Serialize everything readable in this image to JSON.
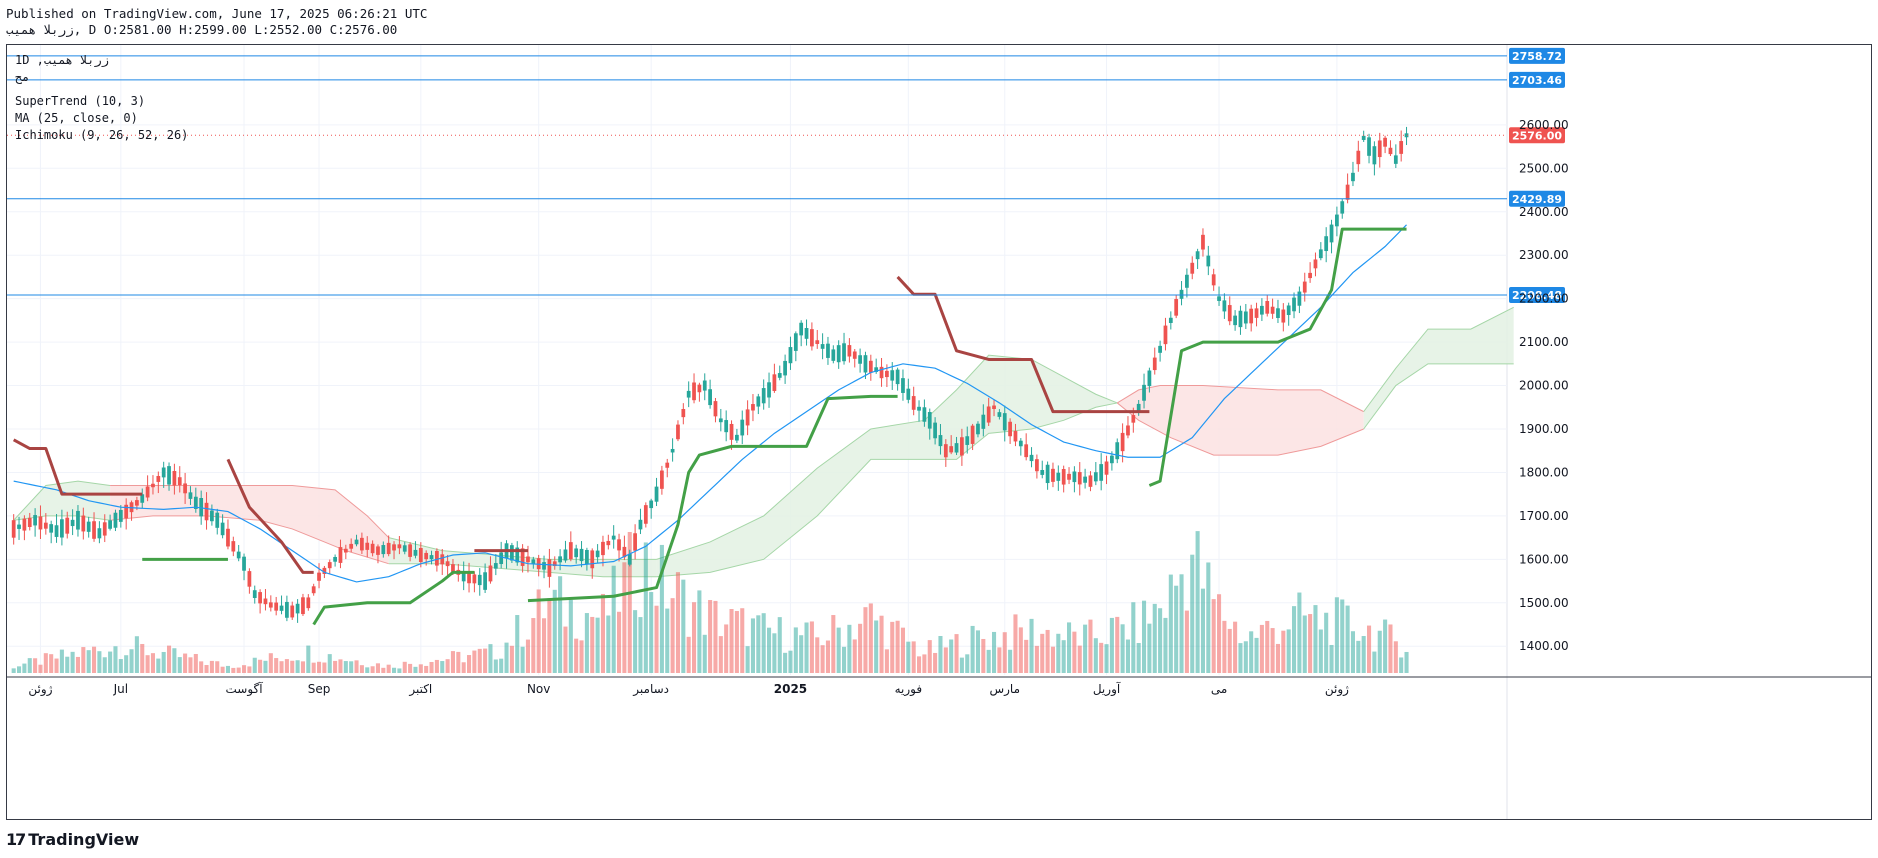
{
  "header": {
    "published": "Published on TradingView.com, June 17, 2025 06:26:21 UTC",
    "ohlc": "زربلا همیب, D O:2581.00 H:2599.00 L:2552.00 C:2576.00"
  },
  "legend": {
    "symbol": "1D ,زربلا همیب",
    "symbol_sub": "مح",
    "supertrend": "SuperTrend (10, 3)",
    "ma": "MA (25, close, 0)",
    "ichimoku": "Ichimoku (9, 26, 52, 26)"
  },
  "footer": {
    "brand": "TradingView"
  },
  "colors": {
    "up": "#26a69a",
    "down": "#ef5350",
    "st_up": "#43a047",
    "st_down": "#a94442",
    "ma": "#2196f3",
    "hline": "#1e88e5",
    "cloud_green": "#e3f1e3",
    "cloud_red": "#fbe2e2"
  },
  "chart_data": {
    "type": "candlestick",
    "ylim": [
      1320,
      2770
    ],
    "y_ticks": [
      "1400.00",
      "1500.00",
      "1600.00",
      "1700.00",
      "1800.00",
      "1900.00",
      "2000.00",
      "2100.00",
      "2200.00",
      "2300.00",
      "2400.00",
      "2500.00",
      "2600.00"
    ],
    "x_ticks": [
      {
        "label": "ژوئن",
        "bar": 5
      },
      {
        "label": "Jul",
        "bar": 20
      },
      {
        "label": "آگوست",
        "bar": 43
      },
      {
        "label": "Sep",
        "bar": 57
      },
      {
        "label": "اکتبر",
        "bar": 76
      },
      {
        "label": "Nov",
        "bar": 98
      },
      {
        "label": "دسامبر",
        "bar": 119
      },
      {
        "label": "2025",
        "bar": 145
      },
      {
        "label": "فوریه",
        "bar": 167
      },
      {
        "label": "مارس",
        "bar": 185
      },
      {
        "label": "آوریل",
        "bar": 204
      },
      {
        "label": "می",
        "bar": 225
      },
      {
        "label": "ژوئن",
        "bar": 247
      }
    ],
    "horizontal_lines": [
      {
        "value": 2758.72,
        "label": "2758.72"
      },
      {
        "value": 2703.46,
        "label": "2703.46"
      },
      {
        "value": 2429.89,
        "label": "2429.89"
      },
      {
        "value": 2208.48,
        "label": "2208.48"
      }
    ],
    "last_price": {
      "value": 2576.0,
      "label": "2576.00"
    },
    "close_path": [
      [
        0,
        1670
      ],
      [
        4,
        1690
      ],
      [
        8,
        1665
      ],
      [
        12,
        1690
      ],
      [
        16,
        1660
      ],
      [
        20,
        1700
      ],
      [
        24,
        1740
      ],
      [
        28,
        1800
      ],
      [
        31,
        1780
      ],
      [
        34,
        1730
      ],
      [
        38,
        1690
      ],
      [
        41,
        1630
      ],
      [
        43,
        1590
      ],
      [
        45,
        1520
      ],
      [
        48,
        1495
      ],
      [
        52,
        1480
      ],
      [
        55,
        1500
      ],
      [
        57,
        1560
      ],
      [
        60,
        1600
      ],
      [
        64,
        1640
      ],
      [
        68,
        1620
      ],
      [
        72,
        1630
      ],
      [
        76,
        1610
      ],
      [
        80,
        1600
      ],
      [
        84,
        1560
      ],
      [
        88,
        1550
      ],
      [
        92,
        1620
      ],
      [
        96,
        1600
      ],
      [
        100,
        1580
      ],
      [
        104,
        1620
      ],
      [
        108,
        1600
      ],
      [
        112,
        1650
      ],
      [
        115,
        1600
      ],
      [
        117,
        1680
      ],
      [
        120,
        1750
      ],
      [
        123,
        1850
      ],
      [
        126,
        1980
      ],
      [
        129,
        2000
      ],
      [
        132,
        1920
      ],
      [
        135,
        1880
      ],
      [
        138,
        1950
      ],
      [
        141,
        1990
      ],
      [
        144,
        2040
      ],
      [
        147,
        2130
      ],
      [
        150,
        2100
      ],
      [
        153,
        2070
      ],
      [
        156,
        2080
      ],
      [
        159,
        2050
      ],
      [
        162,
        2030
      ],
      [
        165,
        2020
      ],
      [
        168,
        1960
      ],
      [
        171,
        1920
      ],
      [
        174,
        1850
      ],
      [
        177,
        1860
      ],
      [
        180,
        1900
      ],
      [
        183,
        1950
      ],
      [
        186,
        1900
      ],
      [
        189,
        1850
      ],
      [
        192,
        1800
      ],
      [
        195,
        1790
      ],
      [
        198,
        1790
      ],
      [
        201,
        1780
      ],
      [
        204,
        1810
      ],
      [
        207,
        1870
      ],
      [
        210,
        1950
      ],
      [
        213,
        2050
      ],
      [
        216,
        2150
      ],
      [
        219,
        2240
      ],
      [
        222,
        2330
      ],
      [
        225,
        2200
      ],
      [
        228,
        2150
      ],
      [
        231,
        2160
      ],
      [
        234,
        2180
      ],
      [
        237,
        2160
      ],
      [
        240,
        2200
      ],
      [
        243,
        2280
      ],
      [
        246,
        2350
      ],
      [
        248,
        2410
      ],
      [
        250,
        2480
      ],
      [
        252,
        2570
      ],
      [
        254,
        2530
      ],
      [
        256,
        2560
      ],
      [
        258,
        2520
      ],
      [
        260,
        2576
      ]
    ],
    "volume_profile": [
      [
        0,
        0.05
      ],
      [
        20,
        0.2
      ],
      [
        40,
        0.05
      ],
      [
        55,
        0.15
      ],
      [
        70,
        0.05
      ],
      [
        90,
        0.15
      ],
      [
        100,
        0.5
      ],
      [
        110,
        0.4
      ],
      [
        117,
        0.8
      ],
      [
        122,
        0.6
      ],
      [
        130,
        0.4
      ],
      [
        140,
        0.3
      ],
      [
        150,
        0.25
      ],
      [
        160,
        0.4
      ],
      [
        170,
        0.15
      ],
      [
        180,
        0.25
      ],
      [
        190,
        0.3
      ],
      [
        200,
        0.25
      ],
      [
        210,
        0.35
      ],
      [
        215,
        0.5
      ],
      [
        220,
        0.85
      ],
      [
        224,
        0.5
      ],
      [
        230,
        0.25
      ],
      [
        240,
        0.4
      ],
      [
        250,
        0.35
      ],
      [
        260,
        0.2
      ]
    ],
    "ma_path": [
      [
        0,
        1780
      ],
      [
        8,
        1760
      ],
      [
        14,
        1735
      ],
      [
        20,
        1720
      ],
      [
        28,
        1715
      ],
      [
        34,
        1720
      ],
      [
        40,
        1710
      ],
      [
        46,
        1670
      ],
      [
        52,
        1620
      ],
      [
        58,
        1570
      ],
      [
        64,
        1548
      ],
      [
        70,
        1560
      ],
      [
        76,
        1590
      ],
      [
        82,
        1610
      ],
      [
        88,
        1615
      ],
      [
        96,
        1590
      ],
      [
        104,
        1585
      ],
      [
        112,
        1595
      ],
      [
        118,
        1630
      ],
      [
        124,
        1690
      ],
      [
        130,
        1760
      ],
      [
        136,
        1830
      ],
      [
        142,
        1890
      ],
      [
        148,
        1940
      ],
      [
        154,
        1990
      ],
      [
        160,
        2030
      ],
      [
        166,
        2050
      ],
      [
        172,
        2040
      ],
      [
        178,
        2005
      ],
      [
        184,
        1960
      ],
      [
        190,
        1910
      ],
      [
        196,
        1870
      ],
      [
        202,
        1850
      ],
      [
        208,
        1835
      ],
      [
        214,
        1835
      ],
      [
        220,
        1880
      ],
      [
        226,
        1970
      ],
      [
        232,
        2040
      ],
      [
        238,
        2110
      ],
      [
        244,
        2180
      ],
      [
        250,
        2260
      ],
      [
        256,
        2320
      ],
      [
        260,
        2370
      ]
    ],
    "supertrend": [
      {
        "trend": "down",
        "points": [
          [
            0,
            1875
          ],
          [
            3,
            1855
          ],
          [
            6,
            1855
          ],
          [
            9,
            1750
          ],
          [
            16,
            1750
          ],
          [
            24,
            1750
          ]
        ]
      },
      {
        "trend": "up",
        "points": [
          [
            24,
            1600
          ],
          [
            40,
            1600
          ]
        ]
      },
      {
        "trend": "down",
        "points": [
          [
            40,
            1830
          ],
          [
            44,
            1720
          ],
          [
            50,
            1640
          ],
          [
            54,
            1570
          ],
          [
            56,
            1570
          ]
        ]
      },
      {
        "trend": "up",
        "points": [
          [
            56,
            1450
          ],
          [
            58,
            1490
          ],
          [
            66,
            1500
          ],
          [
            74,
            1500
          ],
          [
            80,
            1550
          ],
          [
            82,
            1570
          ],
          [
            86,
            1570
          ]
        ]
      },
      {
        "trend": "down",
        "points": [
          [
            86,
            1620
          ],
          [
            96,
            1620
          ]
        ]
      },
      {
        "trend": "up",
        "points": [
          [
            96,
            1505
          ],
          [
            112,
            1515
          ],
          [
            120,
            1535
          ],
          [
            124,
            1680
          ],
          [
            126,
            1800
          ],
          [
            128,
            1840
          ],
          [
            134,
            1860
          ],
          [
            148,
            1860
          ],
          [
            152,
            1970
          ],
          [
            160,
            1975
          ],
          [
            165,
            1975
          ]
        ]
      },
      {
        "trend": "down",
        "points": [
          [
            165,
            2250
          ],
          [
            168,
            2210
          ],
          [
            172,
            2210
          ],
          [
            176,
            2080
          ],
          [
            182,
            2060
          ],
          [
            190,
            2060
          ],
          [
            194,
            1940
          ],
          [
            200,
            1940
          ],
          [
            212,
            1940
          ]
        ]
      },
      {
        "trend": "up",
        "points": [
          [
            212,
            1770
          ],
          [
            214,
            1780
          ],
          [
            218,
            2080
          ],
          [
            222,
            2100
          ],
          [
            236,
            2100
          ],
          [
            242,
            2130
          ],
          [
            246,
            2220
          ],
          [
            248,
            2360
          ],
          [
            260,
            2360
          ]
        ]
      }
    ],
    "cloud": [
      {
        "color": "green",
        "top": [
          [
            0,
            1690
          ],
          [
            6,
            1770
          ],
          [
            12,
            1780
          ],
          [
            18,
            1770
          ]
        ],
        "bottom": [
          [
            0,
            1690
          ],
          [
            6,
            1700
          ],
          [
            12,
            1700
          ],
          [
            18,
            1690
          ]
        ]
      },
      {
        "color": "red",
        "top": [
          [
            18,
            1770
          ],
          [
            30,
            1770
          ],
          [
            40,
            1770
          ],
          [
            52,
            1770
          ],
          [
            60,
            1760
          ],
          [
            66,
            1700
          ],
          [
            70,
            1650
          ]
        ],
        "bottom": [
          [
            18,
            1690
          ],
          [
            26,
            1700
          ],
          [
            36,
            1700
          ],
          [
            46,
            1690
          ],
          [
            52,
            1670
          ],
          [
            58,
            1640
          ],
          [
            62,
            1620
          ],
          [
            70,
            1590
          ]
        ]
      },
      {
        "color": "green",
        "top": [
          [
            70,
            1650
          ],
          [
            80,
            1620
          ],
          [
            90,
            1610
          ],
          [
            100,
            1600
          ],
          [
            110,
            1600
          ],
          [
            120,
            1600
          ]
        ],
        "bottom": [
          [
            70,
            1590
          ],
          [
            80,
            1590
          ],
          [
            90,
            1580
          ],
          [
            100,
            1570
          ],
          [
            110,
            1560
          ],
          [
            120,
            1560
          ]
        ]
      },
      {
        "color": "green",
        "top": [
          [
            120,
            1600
          ],
          [
            130,
            1640
          ],
          [
            140,
            1700
          ],
          [
            150,
            1810
          ],
          [
            160,
            1900
          ],
          [
            170,
            1920
          ],
          [
            176,
            1990
          ],
          [
            182,
            2070
          ],
          [
            190,
            2060
          ],
          [
            196,
            2020
          ],
          [
            202,
            1980
          ],
          [
            206,
            1960
          ]
        ],
        "bottom": [
          [
            120,
            1560
          ],
          [
            130,
            1570
          ],
          [
            140,
            1600
          ],
          [
            150,
            1700
          ],
          [
            160,
            1830
          ],
          [
            170,
            1830
          ],
          [
            176,
            1830
          ],
          [
            182,
            1890
          ],
          [
            190,
            1900
          ],
          [
            196,
            1920
          ],
          [
            202,
            1950
          ],
          [
            206,
            1960
          ]
        ]
      },
      {
        "color": "red",
        "top": [
          [
            206,
            1960
          ],
          [
            210,
            1990
          ],
          [
            214,
            2000
          ],
          [
            222,
            2000
          ],
          [
            236,
            1990
          ],
          [
            244,
            1990
          ],
          [
            252,
            1940
          ]
        ],
        "bottom": [
          [
            206,
            1960
          ],
          [
            210,
            1920
          ],
          [
            216,
            1880
          ],
          [
            224,
            1840
          ],
          [
            236,
            1840
          ],
          [
            244,
            1860
          ],
          [
            252,
            1900
          ]
        ]
      },
      {
        "color": "green",
        "top": [
          [
            252,
            1940
          ],
          [
            258,
            2040
          ],
          [
            264,
            2130
          ],
          [
            272,
            2130
          ],
          [
            280,
            2180
          ]
        ],
        "bottom": [
          [
            252,
            1900
          ],
          [
            258,
            2000
          ],
          [
            264,
            2050
          ],
          [
            272,
            2050
          ],
          [
            280,
            2050
          ]
        ]
      }
    ]
  }
}
